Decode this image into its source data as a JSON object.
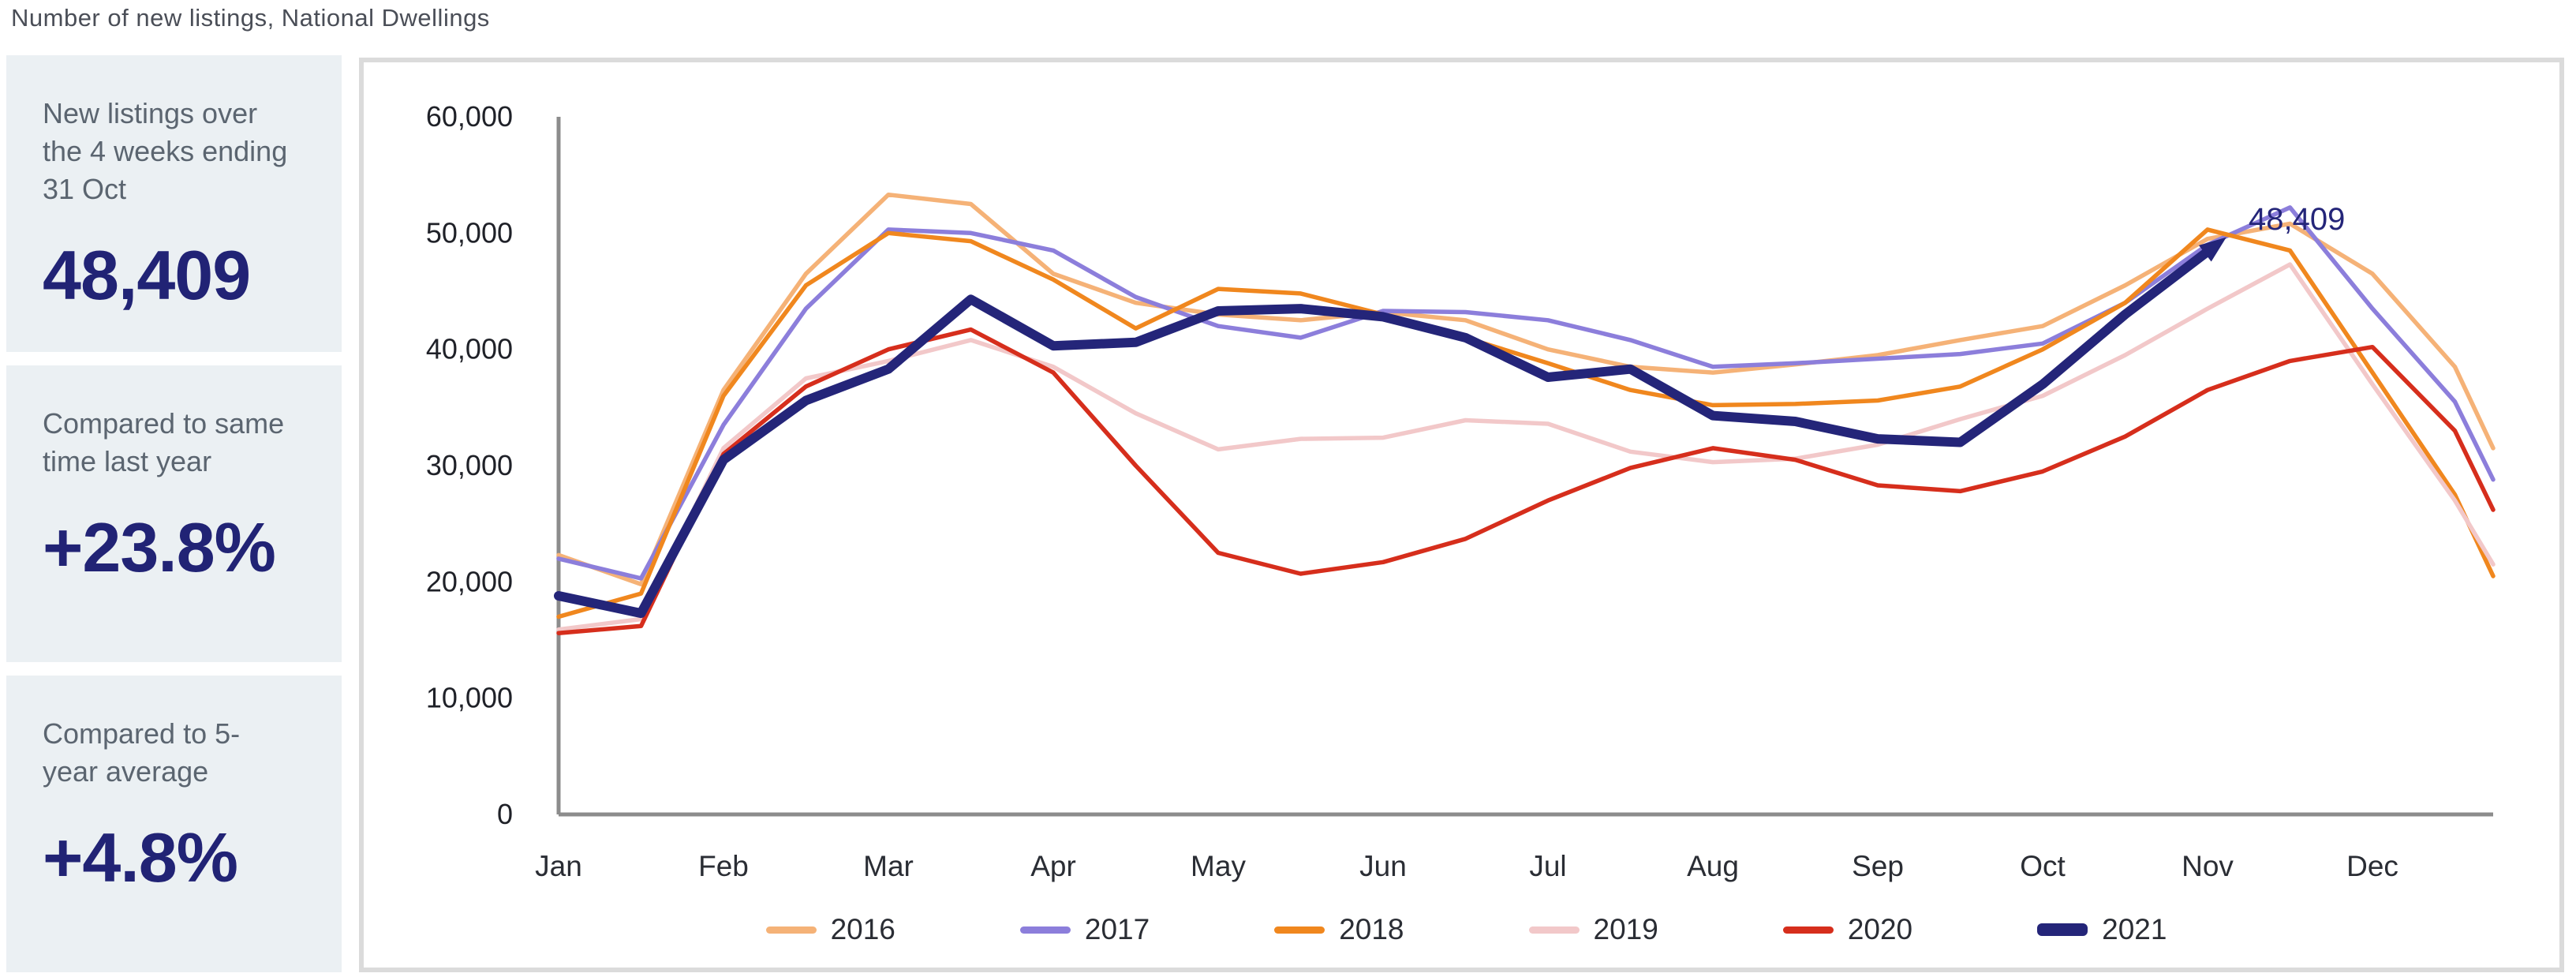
{
  "page_title": "Number of new listings, National Dwellings",
  "stats": [
    {
      "label": "New listings over the 4 weeks ending 31 Oct",
      "value": "48,409"
    },
    {
      "label": "Compared to same time last year",
      "value": "+23.8%"
    },
    {
      "label": "Compared to 5-year average",
      "value": "+4.8%"
    }
  ],
  "colors": {
    "card_background": "#EBF0F3",
    "stat_value": "#212375",
    "stat_label": "#5B6570",
    "panel_border": "#DBDBDB",
    "axis": "#8C8C8C",
    "title_text": "#4A4E57"
  },
  "chart_data": {
    "type": "line",
    "title": "Number of new listings, National Dwellings",
    "xlabel": "",
    "ylabel": "",
    "ylim": [
      0,
      60000
    ],
    "y_tick_labels": [
      "0",
      "10,000",
      "20,000",
      "30,000",
      "40,000",
      "50,000",
      "60,000"
    ],
    "categories": [
      "Jan",
      "Feb",
      "Mar",
      "Apr",
      "May",
      "Jun",
      "Jul",
      "Aug",
      "Sep",
      "Oct",
      "Nov",
      "Dec"
    ],
    "points_per_month": 2,
    "grid": false,
    "legend_position": "bottom",
    "annotation": {
      "text": "48,409",
      "series": "2021",
      "at": "end of 2021 line (31 Oct)"
    },
    "series": [
      {
        "name": "2016",
        "color": "#F5B277",
        "thick": false,
        "values": [
          22300,
          19800,
          36500,
          46500,
          53300,
          52500,
          46500,
          44000,
          43000,
          42500,
          43200,
          42500,
          40000,
          38500,
          38000,
          38700,
          39500,
          40800,
          42000,
          45500,
          49500,
          50800,
          46500,
          38500,
          31500
        ]
      },
      {
        "name": "2017",
        "color": "#8C7EDB",
        "thick": false,
        "values": [
          22000,
          20300,
          33500,
          43500,
          50300,
          50000,
          48500,
          44500,
          42000,
          41000,
          43300,
          43200,
          42500,
          40800,
          38500,
          38800,
          39200,
          39600,
          40500,
          44000,
          49000,
          52200,
          43500,
          35500,
          28800
        ]
      },
      {
        "name": "2018",
        "color": "#F0871E",
        "thick": false,
        "values": [
          17000,
          19000,
          36000,
          45500,
          50000,
          49300,
          46000,
          41800,
          45200,
          44800,
          43000,
          41000,
          38800,
          36500,
          35200,
          35300,
          35600,
          36800,
          40000,
          44000,
          50300,
          48500,
          38000,
          27500,
          20500
        ]
      },
      {
        "name": "2019",
        "color": "#F2C8C9",
        "thick": false,
        "values": [
          15900,
          16800,
          31500,
          37500,
          39000,
          40800,
          38500,
          34500,
          31400,
          32300,
          32400,
          33900,
          33600,
          31200,
          30300,
          30600,
          31800,
          34000,
          36000,
          39500,
          43500,
          47300,
          37000,
          27000,
          21500
        ]
      },
      {
        "name": "2020",
        "color": "#D62E1C",
        "thick": false,
        "values": [
          15600,
          16200,
          31000,
          36800,
          40000,
          41700,
          38000,
          30000,
          22500,
          20700,
          21700,
          23700,
          27000,
          29800,
          31500,
          30500,
          28300,
          27800,
          29500,
          32500,
          36500,
          39000,
          40200,
          33000,
          26200
        ]
      },
      {
        "name": "2021",
        "color": "#242579",
        "thick": true,
        "ends_at": "31 Oct",
        "values": [
          18800,
          17300,
          30500,
          35600,
          38300,
          44300,
          40300,
          40600,
          43300,
          43500,
          42800,
          41000,
          37600,
          38300,
          34300,
          33800,
          32300,
          32000,
          37000,
          43000,
          48409
        ]
      }
    ]
  }
}
